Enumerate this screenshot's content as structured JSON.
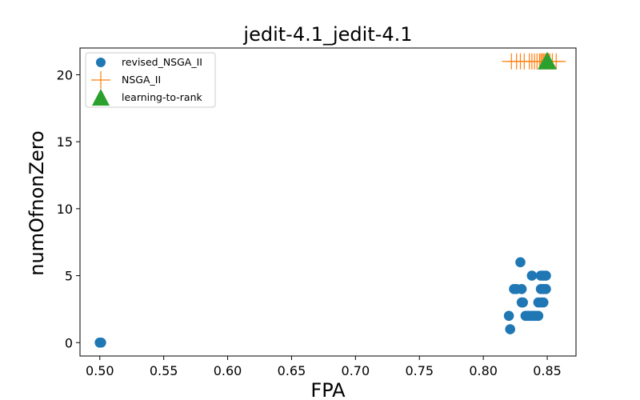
{
  "chart_data": {
    "type": "scatter",
    "title": "jedit-4.1_jedit-4.1",
    "xlabel": "FPA",
    "ylabel": "numOfnonZero",
    "xlim": [
      0.4845,
      0.8725
    ],
    "ylim": [
      -1.0,
      22.0
    ],
    "xticks": [
      "0.50",
      "0.55",
      "0.60",
      "0.65",
      "0.70",
      "0.75",
      "0.80",
      "0.85"
    ],
    "xtick_values": [
      0.5,
      0.55,
      0.6,
      0.65,
      0.7,
      0.75,
      0.8,
      0.85
    ],
    "yticks": [
      "0",
      "5",
      "10",
      "15",
      "20"
    ],
    "ytick_values": [
      0,
      5,
      10,
      15,
      20
    ],
    "grid": false,
    "legend_position": "top-left",
    "series": [
      {
        "name": "revised_NSGA_II",
        "marker": "circle",
        "color": "#1f77b4",
        "points": [
          [
            0.5,
            0
          ],
          [
            0.5,
            0
          ],
          [
            0.501,
            0
          ],
          [
            0.821,
            1
          ],
          [
            0.82,
            2
          ],
          [
            0.824,
            4
          ],
          [
            0.826,
            4
          ],
          [
            0.83,
            4
          ],
          [
            0.829,
            6
          ],
          [
            0.83,
            3
          ],
          [
            0.831,
            3
          ],
          [
            0.833,
            2
          ],
          [
            0.835,
            2
          ],
          [
            0.837,
            2
          ],
          [
            0.839,
            2
          ],
          [
            0.841,
            2
          ],
          [
            0.843,
            2
          ],
          [
            0.838,
            5
          ],
          [
            0.843,
            3
          ],
          [
            0.845,
            3
          ],
          [
            0.847,
            3
          ],
          [
            0.845,
            4
          ],
          [
            0.847,
            4
          ],
          [
            0.849,
            4
          ],
          [
            0.845,
            5
          ],
          [
            0.847,
            5
          ],
          [
            0.849,
            5
          ]
        ]
      },
      {
        "name": "NSGA_II",
        "marker": "plus",
        "color": "#ff7f0e",
        "points": [
          [
            0.822,
            21
          ],
          [
            0.826,
            21
          ],
          [
            0.829,
            21
          ],
          [
            0.832,
            21
          ],
          [
            0.836,
            21
          ],
          [
            0.838,
            21
          ],
          [
            0.84,
            21
          ],
          [
            0.842,
            21
          ],
          [
            0.844,
            21
          ],
          [
            0.845,
            21
          ],
          [
            0.846,
            21
          ],
          [
            0.847,
            21
          ],
          [
            0.848,
            21
          ],
          [
            0.849,
            21
          ],
          [
            0.85,
            21
          ],
          [
            0.851,
            21
          ],
          [
            0.852,
            21
          ],
          [
            0.854,
            21
          ],
          [
            0.857,
            21
          ]
        ]
      },
      {
        "name": "learning-to-rank",
        "marker": "triangle",
        "color": "#2ca02c",
        "points": [
          [
            0.85,
            21
          ]
        ]
      }
    ]
  }
}
